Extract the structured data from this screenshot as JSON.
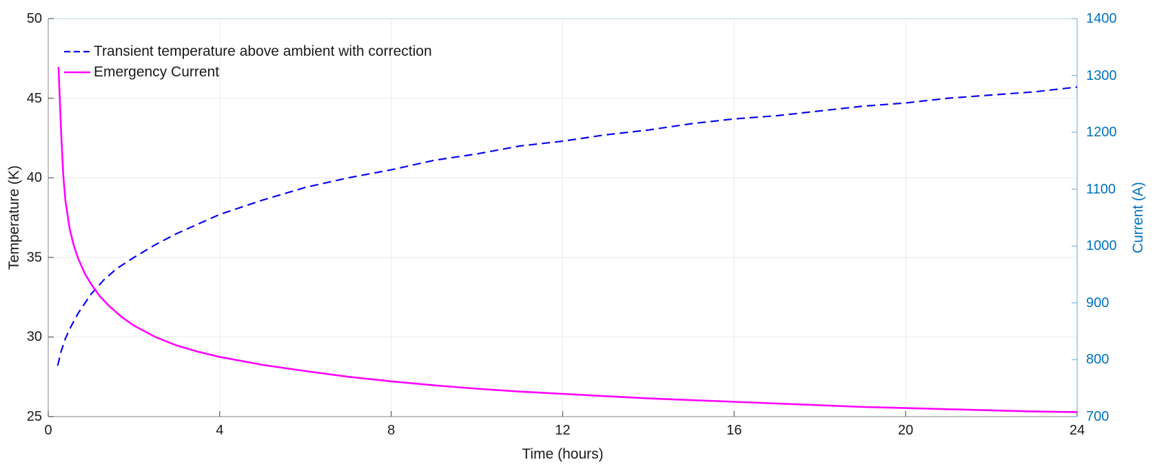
{
  "figure": {
    "background": "#ffffff",
    "plot_border_top_color": "#b9d7ea",
    "grid_color": "#e9e9e9",
    "left_axis": {
      "spine_color": "#9a9a9a",
      "tick_color": "#5a5a5a",
      "label_color": "#1a1a1a"
    },
    "bottom_axis": {
      "spine_color": "#9a9a9a",
      "tick_color": "#5a5a5a",
      "label_color": "#1a1a1a"
    },
    "right_axis": {
      "spine_color": "#7ab4d8",
      "tick_color": "#7ab4d8",
      "label_color": "#0072BD"
    }
  },
  "legend": {
    "position": "top-left",
    "entries": [
      {
        "label": "Transient temperature above ambient with correction",
        "color": "#0505F2",
        "style": "dashed"
      },
      {
        "label": "Emergency Current",
        "color": "#FF00FF",
        "style": "solid"
      }
    ]
  },
  "chart_data": {
    "type": "line",
    "title": "",
    "xlabel": "Time (hours)",
    "ylabel_left": "Temperature (K)",
    "ylabel_right": "Current (A)",
    "xlim": [
      0,
      24
    ],
    "ylim_left": [
      25,
      50
    ],
    "ylim_right": [
      700,
      1400
    ],
    "x_ticks": [
      0,
      4,
      8,
      12,
      16,
      20,
      24
    ],
    "y_left_ticks": [
      25,
      30,
      35,
      40,
      45,
      50
    ],
    "y_right_ticks": [
      700,
      800,
      900,
      1000,
      1100,
      1200,
      1300,
      1400
    ],
    "grid": true,
    "series": [
      {
        "name": "Transient temperature above ambient with correction",
        "axis": "left",
        "color": "#0505F2",
        "line_style": "dashed",
        "line_width": 2.2,
        "x": [
          0.22,
          0.3,
          0.4,
          0.5,
          0.7,
          1,
          1.3,
          1.6,
          2,
          2.5,
          3,
          3.5,
          4,
          5,
          6,
          7,
          8,
          9,
          10,
          11,
          12,
          13,
          14,
          15,
          16,
          17,
          18,
          19,
          20,
          21,
          22,
          23,
          24
        ],
        "y": [
          28.2,
          29.1,
          29.9,
          30.5,
          31.5,
          32.7,
          33.6,
          34.3,
          35.0,
          35.8,
          36.5,
          37.1,
          37.7,
          38.6,
          39.4,
          40.0,
          40.5,
          41.1,
          41.5,
          42.0,
          42.3,
          42.7,
          43.0,
          43.4,
          43.7,
          43.9,
          44.2,
          44.5,
          44.7,
          45.0,
          45.2,
          45.4,
          45.7
        ]
      },
      {
        "name": "Emergency Current",
        "axis": "right",
        "color": "#FF00FF",
        "line_style": "solid",
        "line_width": 2.6,
        "x": [
          0.24,
          0.3,
          0.35,
          0.4,
          0.5,
          0.6,
          0.7,
          0.85,
          1,
          1.2,
          1.4,
          1.7,
          2,
          2.5,
          3,
          3.5,
          4,
          5,
          6,
          7,
          8,
          9,
          10,
          11,
          12,
          13,
          14,
          15,
          16,
          17,
          18,
          19,
          20,
          21,
          22,
          23,
          24
        ],
        "y": [
          1315,
          1200,
          1125,
          1080,
          1030,
          1000,
          978,
          952,
          933,
          912,
          896,
          876,
          860,
          840,
          825,
          814,
          805,
          791,
          780,
          770,
          762,
          755,
          749,
          744,
          740,
          736,
          732,
          729,
          726,
          723,
          720,
          717,
          715,
          713,
          711,
          709,
          708
        ]
      }
    ]
  }
}
